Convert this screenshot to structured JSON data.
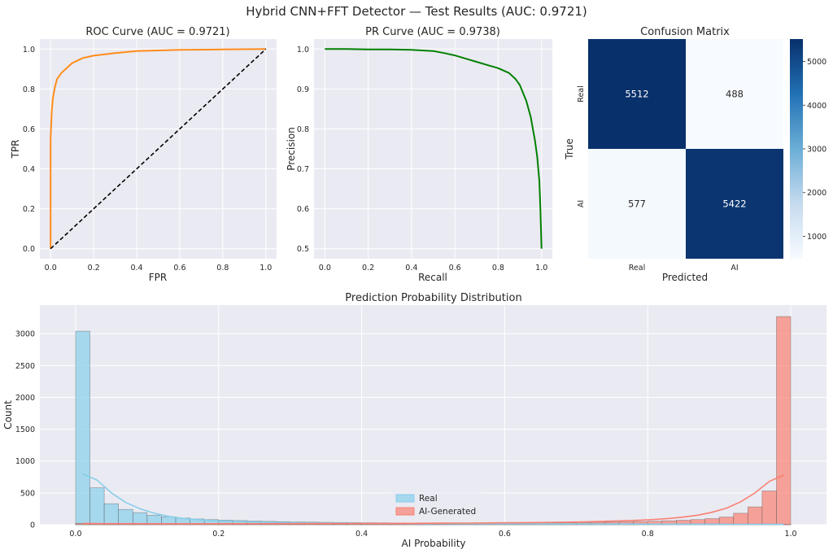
{
  "figure": {
    "title": "Hybrid CNN+FFT Detector — Test Results (AUC: 0.9721)"
  },
  "chart_data": [
    {
      "type": "line",
      "id": "roc",
      "title": "ROC Curve (AUC = 0.9721)",
      "xlabel": "FPR",
      "ylabel": "TPR",
      "xlim": [
        -0.05,
        1.05
      ],
      "ylim": [
        -0.05,
        1.05
      ],
      "xticks": [
        "0.0",
        "0.2",
        "0.4",
        "0.6",
        "0.8",
        "1.0"
      ],
      "yticks": [
        "0.0",
        "0.2",
        "0.4",
        "0.6",
        "0.8",
        "1.0"
      ],
      "grid": true,
      "series": [
        {
          "color": "#ff8c1a",
          "style": "solid",
          "x": [
            0,
            0,
            0.005,
            0.01,
            0.02,
            0.03,
            0.05,
            0.08,
            0.1,
            0.15,
            0.2,
            0.3,
            0.4,
            0.5,
            0.6,
            0.8,
            1.0
          ],
          "y": [
            0,
            0.55,
            0.68,
            0.75,
            0.81,
            0.85,
            0.88,
            0.91,
            0.93,
            0.955,
            0.967,
            0.98,
            0.99,
            0.993,
            0.996,
            0.998,
            1.0
          ]
        },
        {
          "color": "#000000",
          "style": "dashed",
          "x": [
            0,
            1
          ],
          "y": [
            0,
            1
          ]
        }
      ]
    },
    {
      "type": "line",
      "id": "pr",
      "title": "PR Curve (AUC = 0.9738)",
      "xlabel": "Recall",
      "ylabel": "Precision",
      "xlim": [
        -0.05,
        1.05
      ],
      "ylim": [
        0.475,
        1.025
      ],
      "xticks": [
        "0.0",
        "0.2",
        "0.4",
        "0.6",
        "0.8",
        "1.0"
      ],
      "yticks": [
        "0.5",
        "0.6",
        "0.7",
        "0.8",
        "0.9",
        "1.0"
      ],
      "grid": true,
      "series": [
        {
          "color": "#008000",
          "style": "solid",
          "x": [
            0,
            0.1,
            0.2,
            0.3,
            0.4,
            0.5,
            0.55,
            0.6,
            0.65,
            0.7,
            0.75,
            0.8,
            0.85,
            0.88,
            0.9,
            0.93,
            0.95,
            0.97,
            0.98,
            0.99,
            0.995,
            1.0
          ],
          "y": [
            1.0,
            1.0,
            0.999,
            0.999,
            0.998,
            0.995,
            0.99,
            0.984,
            0.976,
            0.968,
            0.96,
            0.952,
            0.94,
            0.925,
            0.91,
            0.87,
            0.83,
            0.77,
            0.73,
            0.67,
            0.6,
            0.5
          ]
        }
      ]
    },
    {
      "type": "heatmap",
      "id": "cm",
      "title": "Confusion Matrix",
      "xlabel": "Predicted",
      "ylabel": "True",
      "x_categories": [
        "Real",
        "AI"
      ],
      "y_categories": [
        "Real",
        "AI"
      ],
      "values": [
        [
          5512,
          488
        ],
        [
          577,
          5422
        ]
      ],
      "colorbar_ticks": [
        "1000",
        "2000",
        "3000",
        "4000",
        "5000"
      ],
      "colorbar_range": [
        488,
        5512
      ],
      "colormap": [
        "#f7fbff",
        "#c6dbef",
        "#6baed6",
        "#2171b5",
        "#08306b"
      ]
    },
    {
      "type": "bar",
      "id": "hist",
      "title": "Prediction Probability Distribution",
      "xlabel": "AI Probability",
      "ylabel": "Count",
      "xlim": [
        -0.05,
        1.05
      ],
      "ylim": [
        0,
        3450
      ],
      "xticks": [
        "0.0",
        "0.2",
        "0.4",
        "0.6",
        "0.8",
        "1.0"
      ],
      "yticks": [
        "0",
        "500",
        "1000",
        "1500",
        "2000",
        "2500",
        "3000"
      ],
      "bin_width": 0.02,
      "legend_position": "lower-center",
      "series": [
        {
          "name": "Real",
          "color": "#87ceeb",
          "values": [
            3040,
            580,
            330,
            240,
            190,
            150,
            125,
            105,
            90,
            80,
            72,
            65,
            58,
            53,
            48,
            44,
            41,
            38,
            35,
            33,
            31,
            30,
            28,
            27,
            26,
            25,
            24,
            23,
            22,
            22,
            21,
            21,
            20,
            20,
            19,
            19,
            18,
            18,
            17,
            17,
            16,
            16,
            15,
            15,
            14,
            13,
            12,
            11,
            10,
            9
          ],
          "kde": [
            800,
            700,
            500,
            350,
            250,
            180,
            130,
            100,
            80,
            65,
            55,
            48,
            42,
            37,
            33,
            30,
            28,
            26,
            24,
            22,
            21,
            20,
            19,
            18,
            17,
            16,
            15,
            15,
            14,
            14,
            13,
            13,
            12,
            12,
            11,
            11,
            10,
            10,
            10,
            9,
            9,
            9,
            8,
            8,
            8,
            7,
            7,
            6,
            6,
            5
          ]
        },
        {
          "name": "AI-Generated",
          "color": "#fa8072",
          "values": [
            22,
            18,
            16,
            15,
            14,
            14,
            14,
            14,
            14,
            14,
            14,
            14,
            15,
            15,
            15,
            15,
            16,
            16,
            16,
            17,
            17,
            17,
            18,
            18,
            19,
            19,
            20,
            21,
            22,
            23,
            24,
            26,
            28,
            30,
            32,
            35,
            38,
            41,
            45,
            50,
            55,
            62,
            70,
            80,
            95,
            120,
            180,
            280,
            530,
            3270
          ],
          "kde": [
            20,
            18,
            17,
            16,
            16,
            15,
            15,
            15,
            15,
            15,
            16,
            16,
            16,
            17,
            17,
            17,
            18,
            18,
            19,
            19,
            20,
            20,
            21,
            22,
            23,
            24,
            25,
            26,
            27,
            29,
            31,
            33,
            35,
            38,
            41,
            45,
            50,
            56,
            63,
            72,
            83,
            98,
            120,
            150,
            195,
            260,
            360,
            500,
            680,
            780
          ]
        }
      ]
    }
  ]
}
